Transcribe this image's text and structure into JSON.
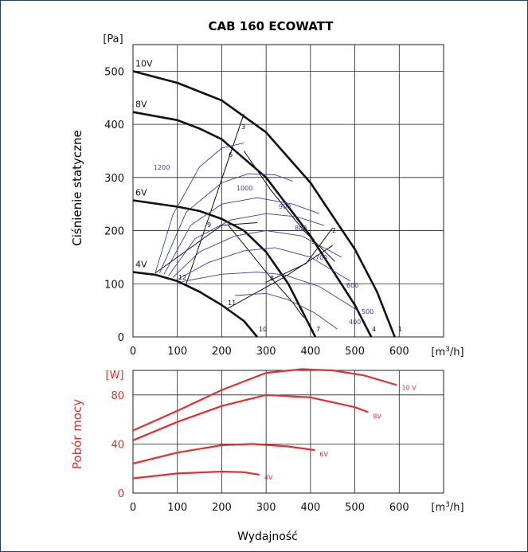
{
  "chart_data": [
    {
      "type": "line",
      "title": "CAB 160 ECOWATT",
      "ylabel": "Ciśnienie statyczne",
      "yunit": "[Pa]",
      "xunit": "[m3/h]",
      "xlim": [
        0,
        700
      ],
      "ylim": [
        0,
        550
      ],
      "xticks": [
        0,
        100,
        200,
        300,
        400,
        500,
        600
      ],
      "yticks": [
        0,
        100,
        200,
        300,
        400,
        500
      ],
      "grid": true,
      "series": [
        {
          "name": "10V",
          "x": [
            0,
            100,
            200,
            300,
            400,
            500,
            550,
            590
          ],
          "y": [
            500,
            478,
            445,
            385,
            290,
            165,
            85,
            0
          ]
        },
        {
          "name": "8V",
          "x": [
            0,
            100,
            150,
            200,
            300,
            400,
            500,
            537
          ],
          "y": [
            423,
            408,
            392,
            372,
            300,
            190,
            60,
            0
          ]
        },
        {
          "name": "6V",
          "x": [
            0,
            100,
            150,
            200,
            250,
            300,
            350,
            411
          ],
          "y": [
            257,
            245,
            237,
            222,
            200,
            160,
            100,
            0
          ]
        },
        {
          "name": "4V",
          "x": [
            0,
            50,
            100,
            150,
            200,
            250,
            280
          ],
          "y": [
            122,
            117,
            105,
            85,
            60,
            30,
            0
          ]
        }
      ],
      "system_curves": [
        {
          "x": [
            120,
            250
          ],
          "y": [
            100,
            420
          ]
        },
        {
          "x": [
            50,
            200,
            280
          ],
          "y": [
            120,
            210,
            215
          ]
        },
        {
          "x": [
            210,
            340,
            450
          ],
          "y": [
            52,
            112,
            172
          ]
        },
        {
          "x": [
            300,
            390,
            450
          ],
          "y": [
            103,
            138,
            205
          ]
        },
        {
          "x": [
            250,
            310,
            385,
            455
          ],
          "y": [
            350,
            277,
            200,
            142
          ]
        },
        {
          "x": [
            215,
            305,
            360,
            385
          ],
          "y": [
            210,
            117,
            65,
            36
          ]
        }
      ],
      "point_labels": [
        "1",
        "2",
        "3",
        "4",
        "5",
        "6",
        "7",
        "8",
        "9",
        "10",
        "11",
        "12"
      ],
      "iso_power_labels": [
        "1200",
        "1000",
        "900",
        "800",
        "700",
        "600",
        "500",
        "400"
      ]
    },
    {
      "type": "line",
      "ylabel": "Pobór mocy",
      "yunit": "[W]",
      "xlabel": "Wydajność",
      "xunit": "[m3/h]",
      "xlim": [
        0,
        700
      ],
      "ylim": [
        0,
        100
      ],
      "xticks": [
        0,
        100,
        200,
        300,
        400,
        500,
        600
      ],
      "yticks": [
        0,
        40,
        80
      ],
      "grid": true,
      "series": [
        {
          "name": "10 V",
          "x": [
            0,
            100,
            200,
            300,
            380,
            450,
            520,
            595
          ],
          "y": [
            51,
            67,
            84,
            98,
            101,
            100,
            96,
            88
          ]
        },
        {
          "name": "8V",
          "x": [
            0,
            100,
            200,
            300,
            400,
            500,
            530
          ],
          "y": [
            43,
            58,
            71,
            80,
            78,
            70,
            66
          ]
        },
        {
          "name": "6V",
          "x": [
            0,
            100,
            200,
            270,
            350,
            410
          ],
          "y": [
            24,
            33,
            39,
            40,
            38,
            35
          ]
        },
        {
          "name": "4V",
          "x": [
            0,
            100,
            200,
            250,
            285
          ],
          "y": [
            12,
            16,
            17.5,
            17,
            15
          ]
        }
      ]
    }
  ],
  "colors": {
    "curve": "#111111",
    "iso": "#3a3f9e",
    "power": "#e03030",
    "grid": "#222222"
  }
}
